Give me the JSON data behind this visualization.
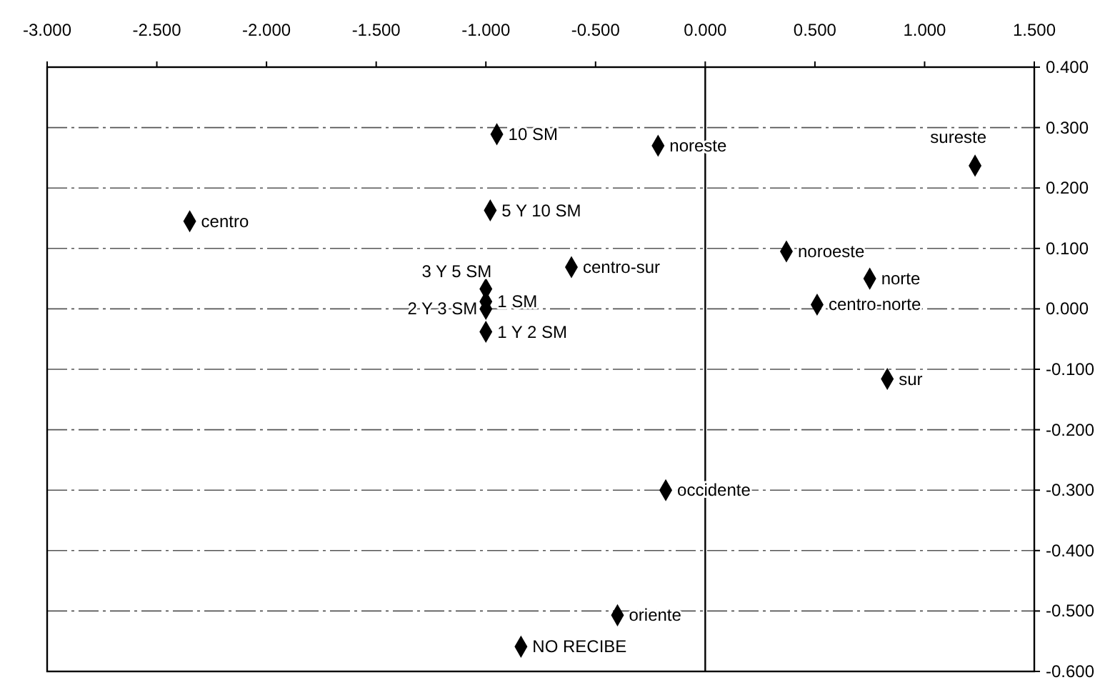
{
  "chart_data": {
    "type": "scatter",
    "marker": "diamond",
    "grid": "y",
    "xlim": [
      -3,
      1.5
    ],
    "xticks": [
      {
        "value": -3,
        "label": "-3.000"
      },
      {
        "value": -2.5,
        "label": "-2.500"
      },
      {
        "value": -2,
        "label": "-2.000"
      },
      {
        "value": -1.5,
        "label": "-1.500"
      },
      {
        "value": -1,
        "label": "-1.000"
      },
      {
        "value": -0.5,
        "label": "-0.500"
      },
      {
        "value": 0,
        "label": "0.000"
      },
      {
        "value": 0.5,
        "label": "0.500"
      },
      {
        "value": 1,
        "label": "1.000"
      },
      {
        "value": 1.5,
        "label": "1.500"
      }
    ],
    "ylim": [
      -0.6,
      0.4
    ],
    "yticks": [
      {
        "value": 0.4,
        "label": "0.400"
      },
      {
        "value": 0.3,
        "label": "0.300"
      },
      {
        "value": 0.2,
        "label": "0.200"
      },
      {
        "value": 0.1,
        "label": "0.100"
      },
      {
        "value": 0,
        "label": "0.000"
      },
      {
        "value": -0.1,
        "label": "-0.100"
      },
      {
        "value": -0.2,
        "label": "-0.200"
      },
      {
        "value": -0.3,
        "label": "-0.300"
      },
      {
        "value": -0.4,
        "label": "-0.400"
      },
      {
        "value": -0.5,
        "label": "-0.500"
      },
      {
        "value": -0.6,
        "label": "-0.600"
      }
    ],
    "ref_lines": [
      {
        "axis": "x",
        "value": 0,
        "color": "#000000"
      }
    ],
    "series": [
      {
        "name": "10 SM",
        "color": "#000000",
        "x": [
          -0.95
        ],
        "values": [
          0.289
        ]
      },
      {
        "name": "noreste",
        "color": "#000000",
        "x": [
          -0.215
        ],
        "values": [
          0.27
        ]
      },
      {
        "name": "sureste",
        "color": "#000000",
        "x": [
          1.23
        ],
        "values": [
          0.237
        ]
      },
      {
        "name": "centro",
        "color": "#000000",
        "x": [
          -2.35
        ],
        "values": [
          0.145
        ]
      },
      {
        "name": "5 Y 10 SM",
        "color": "#000000",
        "x": [
          -0.98
        ],
        "values": [
          0.163
        ]
      },
      {
        "name": "centro-sur",
        "color": "#000000",
        "x": [
          -0.61
        ],
        "values": [
          0.069
        ]
      },
      {
        "name": "noroeste",
        "color": "#000000",
        "x": [
          0.37
        ],
        "values": [
          0.095
        ]
      },
      {
        "name": "norte",
        "color": "#000000",
        "x": [
          0.75
        ],
        "values": [
          0.05
        ]
      },
      {
        "name": "centro-norte",
        "color": "#000000",
        "x": [
          0.51
        ],
        "values": [
          0.007
        ]
      },
      {
        "name": "3 Y 5 SM",
        "color": "#000000",
        "x": [
          -1.0
        ],
        "values": [
          0.033
        ]
      },
      {
        "name": "1 SM",
        "color": "#000000",
        "x": [
          -1.0
        ],
        "values": [
          0.012
        ]
      },
      {
        "name": "2 Y 3 SM",
        "color": "#000000",
        "x": [
          -1.0
        ],
        "values": [
          0.0
        ]
      },
      {
        "name": "1 Y 2 SM",
        "color": "#000000",
        "x": [
          -1.0
        ],
        "values": [
          -0.038
        ]
      },
      {
        "name": "sur",
        "color": "#000000",
        "x": [
          0.83
        ],
        "values": [
          -0.116
        ]
      },
      {
        "name": "occidente",
        "color": "#000000",
        "x": [
          -0.18
        ],
        "values": [
          -0.3
        ]
      },
      {
        "name": "oriente",
        "color": "#000000",
        "x": [
          -0.4
        ],
        "values": [
          -0.507
        ]
      },
      {
        "name": "NO RECIBE",
        "color": "#000000",
        "x": [
          -0.84
        ],
        "values": [
          -0.559
        ]
      }
    ]
  }
}
